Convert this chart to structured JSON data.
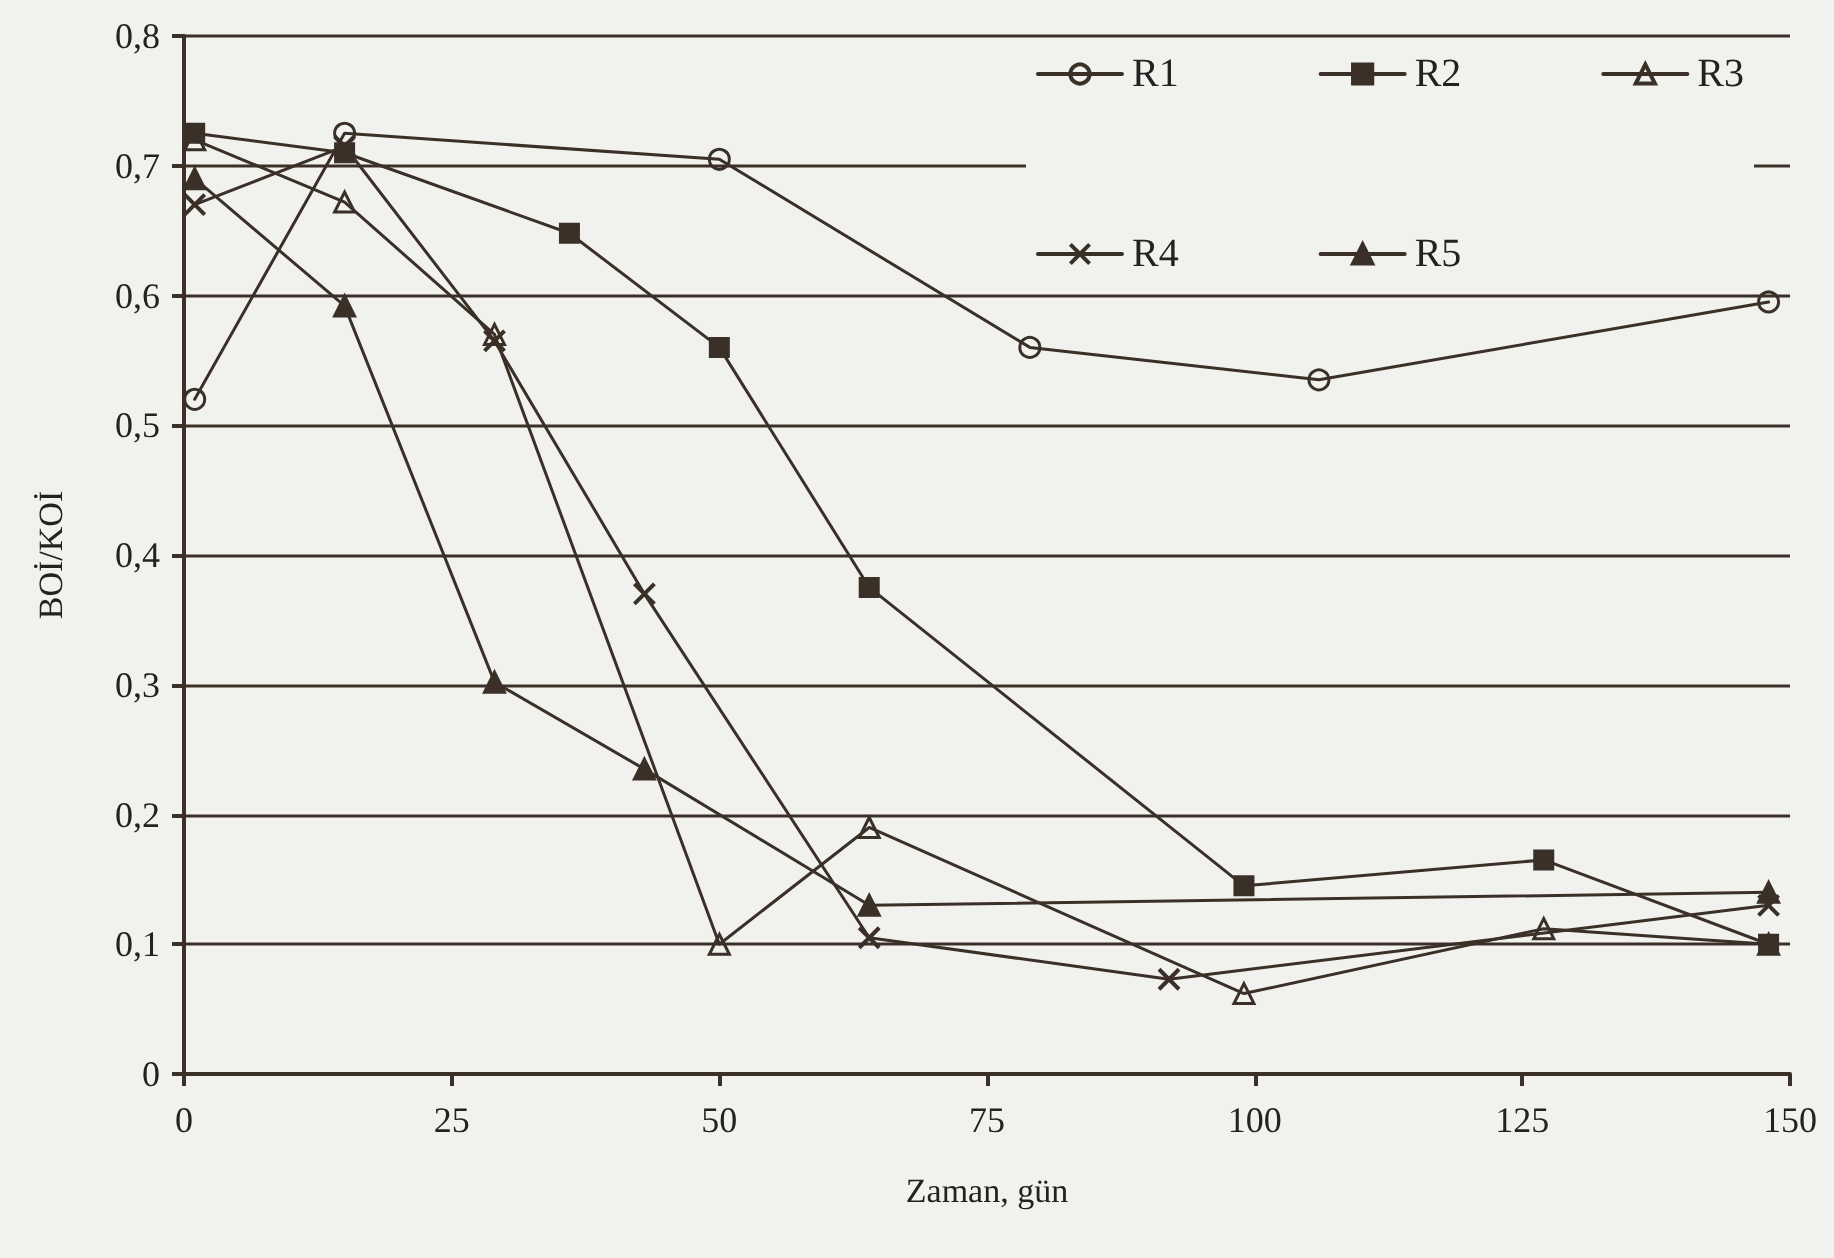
{
  "chart_data": {
    "type": "line",
    "xlabel": "Zaman, gün",
    "ylabel": "BOİ/KOİ",
    "xlim": [
      0,
      150
    ],
    "xticks": [
      0,
      25,
      50,
      75,
      100,
      125,
      150
    ],
    "ylim": [
      0,
      0.8
    ],
    "yticks": [
      {
        "value": 0,
        "label": "0"
      },
      {
        "value": 0.1,
        "label": "0,1"
      },
      {
        "value": 0.2,
        "label": "0,2"
      },
      {
        "value": 0.3,
        "label": "0,3"
      },
      {
        "value": 0.4,
        "label": "0,4"
      },
      {
        "value": 0.5,
        "label": "0,5"
      },
      {
        "value": 0.6,
        "label": "0,6"
      },
      {
        "value": 0.7,
        "label": "0,7"
      },
      {
        "value": 0.8,
        "label": "0,8"
      }
    ],
    "grid": "y",
    "legend": "top right",
    "line_style": "solid",
    "series": [
      {
        "name": "R1",
        "color": "#3a3028",
        "marker": "circle",
        "x": [
          1,
          15,
          50,
          79,
          106,
          148
        ],
        "values": [
          0.52,
          0.725,
          0.705,
          0.56,
          0.535,
          0.595
        ]
      },
      {
        "name": "R2",
        "color": "#3a3028",
        "marker": "square",
        "x": [
          1,
          15,
          36,
          50,
          64,
          99,
          127,
          148
        ],
        "values": [
          0.725,
          0.71,
          0.648,
          0.56,
          0.375,
          0.145,
          0.165,
          0.1
        ]
      },
      {
        "name": "R3",
        "color": "#3a3028",
        "marker": "triangle",
        "x": [
          1,
          15,
          29,
          50,
          64,
          99,
          127,
          148
        ],
        "values": [
          0.72,
          0.672,
          0.57,
          0.1,
          0.19,
          0.062,
          0.112,
          0.1
        ]
      },
      {
        "name": "R4",
        "color": "#3a3028",
        "marker": "cross",
        "x": [
          1,
          15,
          29,
          43,
          64,
          92,
          148
        ],
        "values": [
          0.67,
          0.715,
          0.565,
          0.37,
          0.105,
          0.073,
          0.13
        ]
      },
      {
        "name": "R5",
        "color": "#3a3028",
        "marker": "triangle",
        "x": [
          1,
          15,
          29,
          43,
          64,
          148
        ],
        "values": [
          0.69,
          0.592,
          0.302,
          0.235,
          0.13,
          0.14
        ]
      }
    ]
  }
}
